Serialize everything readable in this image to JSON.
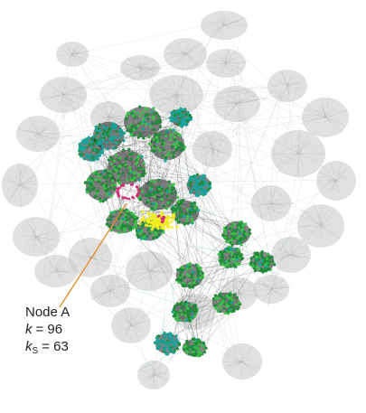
{
  "annotation": {
    "node_name": "Node A",
    "k_symbol": "k",
    "k_value": "= 96",
    "ks_symbol": "k",
    "ks_subscript": "S",
    "ks_value": "= 63"
  },
  "colors": {
    "background_cloud": "#c8c8c8",
    "background_edges": "#b4b4b4",
    "core_node": "#1e8a3a",
    "core_node_bright": "#3cc04a",
    "teal_node": "#16a39a",
    "yellow_node": "#f2ee1e",
    "pink_node": "#d0307a",
    "dark_edge": "#222222",
    "pointer": "#e08a2a"
  }
}
